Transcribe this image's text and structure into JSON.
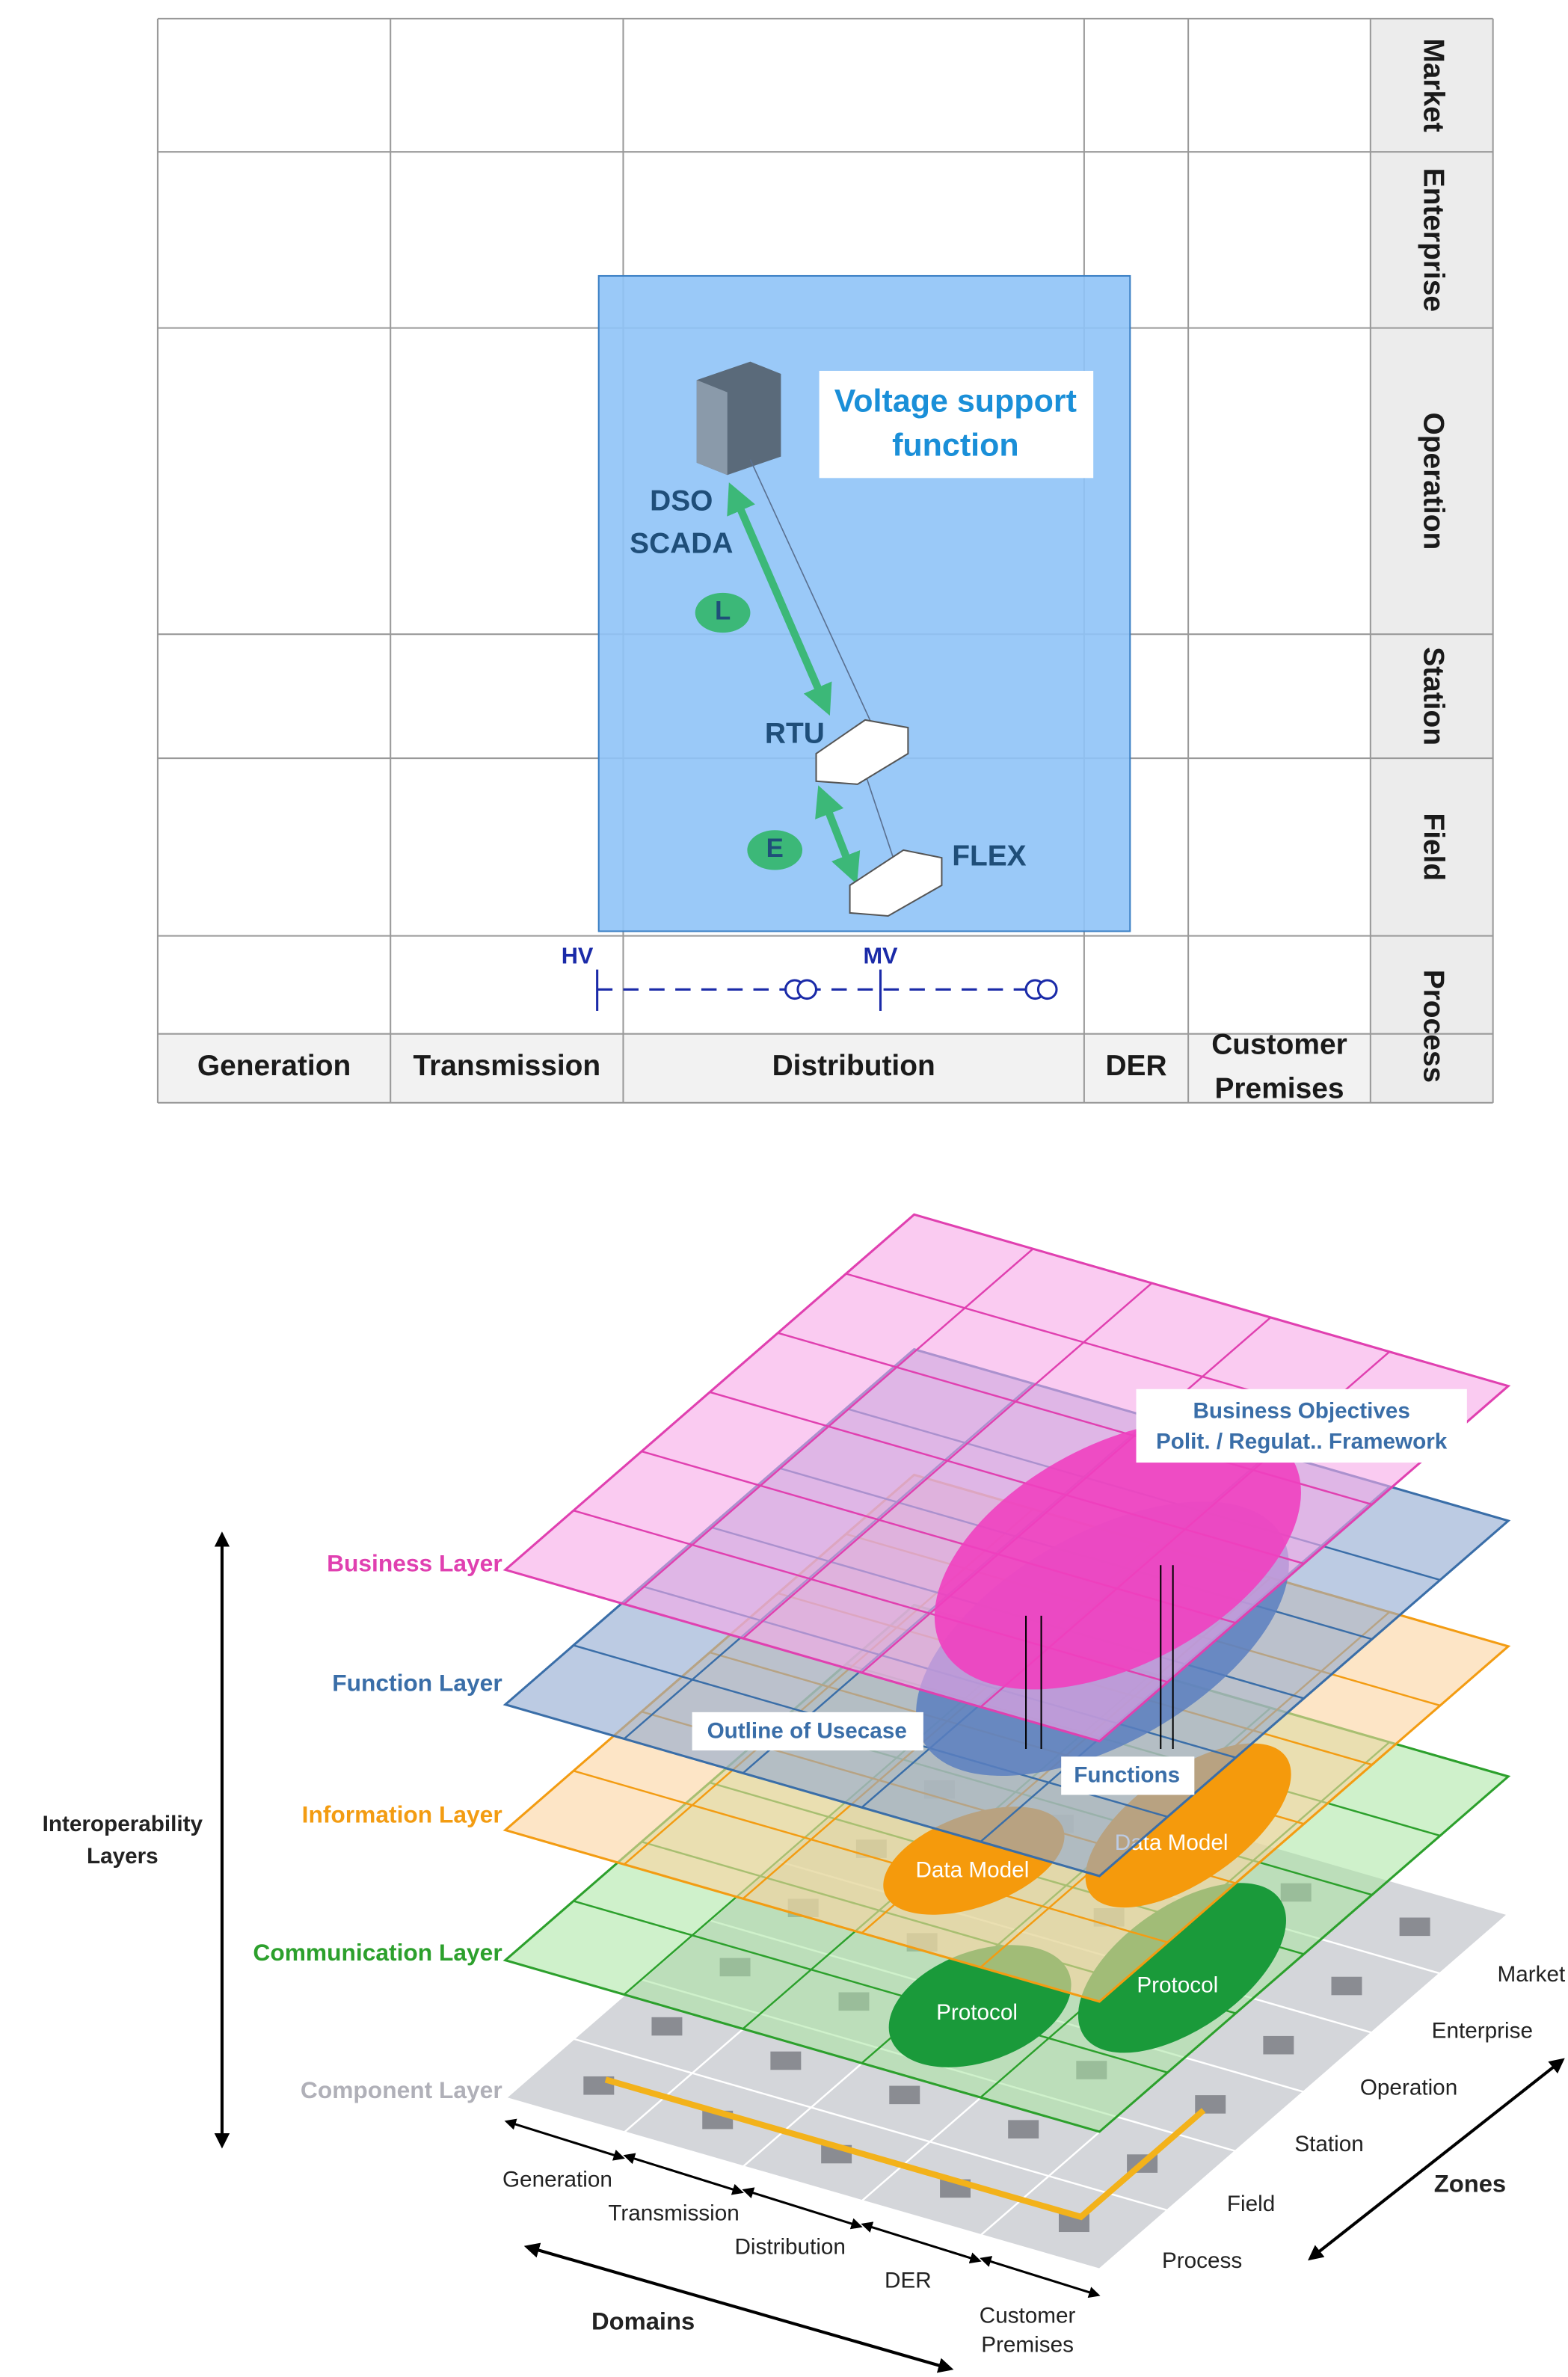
{
  "top": {
    "zones": [
      "Market",
      "Enterprise",
      "Operation",
      "Station",
      "Field",
      "Process"
    ],
    "domains": [
      [
        "Generation"
      ],
      [
        "Transmission"
      ],
      [
        "Distribution"
      ],
      [
        "DER"
      ],
      [
        "Customer",
        "Premises"
      ]
    ],
    "function_label": [
      "Voltage support",
      "function"
    ],
    "scada": [
      "DSO",
      "SCADA"
    ],
    "rtu": "RTU",
    "flex": "FLEX",
    "links": [
      "L",
      "E"
    ],
    "voltage": [
      "HV",
      "MV"
    ]
  },
  "bottom": {
    "layers": [
      "Business Layer",
      "Function Layer",
      "Information Layer",
      "Communication Layer",
      "Component Layer"
    ],
    "axis_label": [
      "Interoperability",
      "Layers"
    ],
    "business_objectives": [
      "Business Objectives",
      "Polit. / Regulat.. Framework"
    ],
    "outline": "Outline of Usecase",
    "functions": "Functions",
    "data_models": [
      "Data Model",
      "Data Model"
    ],
    "protocols": [
      "Protocol",
      "Protocol"
    ],
    "zones": [
      "Market",
      "Enterprise",
      "Operation",
      "Station",
      "Field",
      "Process"
    ],
    "domains": [
      [
        "Generation"
      ],
      [
        "Transmission"
      ],
      [
        "Distribution"
      ],
      [
        "DER"
      ],
      [
        "Customer",
        "Premises"
      ]
    ],
    "zones_label": "Zones",
    "domains_label": "Domains"
  }
}
